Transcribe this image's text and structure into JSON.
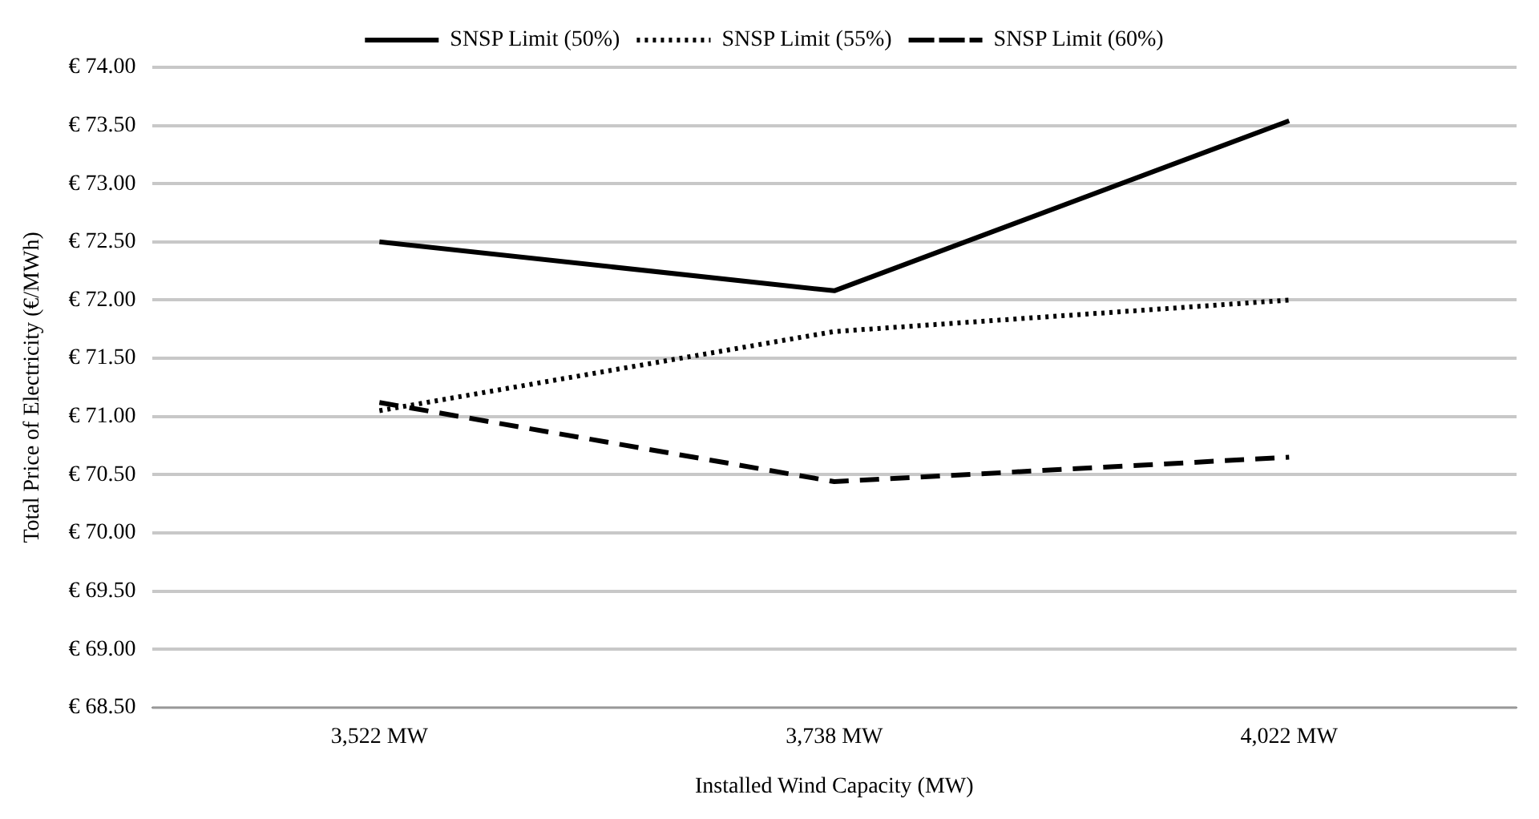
{
  "chart_data": {
    "type": "line",
    "xlabel": "Installed Wind Capacity (MW)",
    "ylabel": "Total Price of Electricity (€/MWh)",
    "categories": [
      "3,522 MW",
      "3,738 MW",
      "4,022 MW"
    ],
    "series": [
      {
        "name": "SNSP Limit (50%)",
        "color": "#000000",
        "line_style": "solid",
        "values": [
          72.5,
          72.08,
          73.54
        ]
      },
      {
        "name": "SNSP Limit (55%)",
        "color": "#000000",
        "line_style": "dotted",
        "values": [
          71.05,
          71.73,
          72.0
        ]
      },
      {
        "name": "SNSP Limit (60%)",
        "color": "#000000",
        "line_style": "dashed",
        "values": [
          71.12,
          70.44,
          70.65
        ]
      }
    ],
    "ylim": [
      68.5,
      74
    ],
    "yticks": [
      {
        "value": 68.5,
        "label": "€ 68.50"
      },
      {
        "value": 69,
        "label": "€ 69.00"
      },
      {
        "value": 69.5,
        "label": "€ 69.50"
      },
      {
        "value": 70,
        "label": "€ 70.00"
      },
      {
        "value": 70.5,
        "label": "€ 70.50"
      },
      {
        "value": 71,
        "label": "€ 71.00"
      },
      {
        "value": 71.5,
        "label": "€ 71.50"
      },
      {
        "value": 72,
        "label": "€ 72.00"
      },
      {
        "value": 72.5,
        "label": "€ 72.50"
      },
      {
        "value": 73,
        "label": "€ 73.00"
      },
      {
        "value": 73.5,
        "label": "€ 73.50"
      },
      {
        "value": 74,
        "label": "€ 74.00"
      }
    ],
    "grid": "y",
    "legend": "top",
    "marker": "none"
  }
}
